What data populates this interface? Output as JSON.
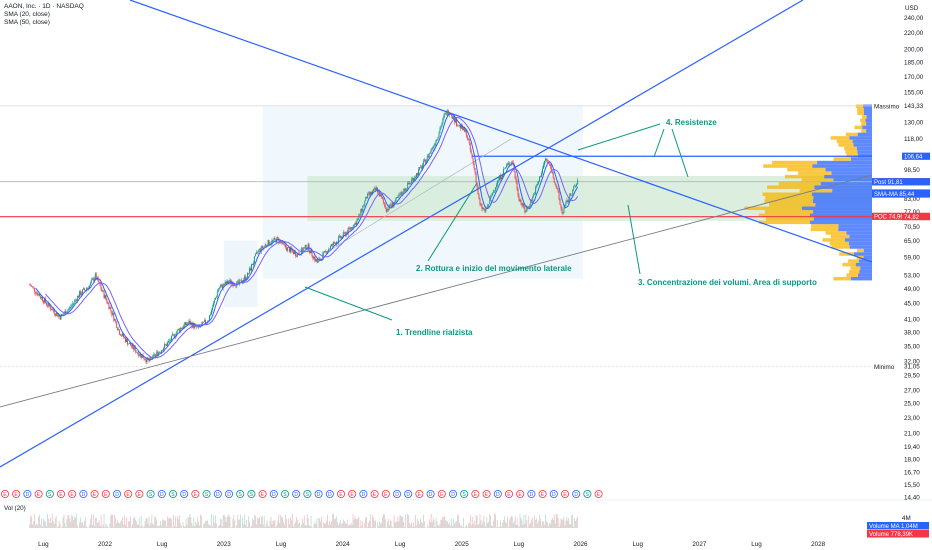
{
  "header": {
    "title": "AAON, Inc. · 1D · NASDAQ",
    "indicator_1": "SMA (20, close)",
    "indicator_2": "SMA (50, close)",
    "volume_label": "Vol (20)",
    "currency": "USD"
  },
  "chart_data": {
    "type": "candlestick",
    "symbol": "AAON",
    "exchange": "NASDAQ",
    "interval": "1D",
    "y_scale": "log",
    "y_ticks": [
      240.0,
      220.0,
      200.0,
      185.0,
      170.0,
      155.0,
      143.33,
      130.0,
      118.0,
      106.64,
      98.5,
      91.5,
      83.0,
      77.0,
      74.82,
      70.5,
      65.0,
      59.0,
      53.0,
      49.0,
      45.0,
      41.0,
      38.0,
      35.0,
      32.0,
      31.05,
      29.5,
      27.0,
      25.0,
      23.0,
      21.0,
      19.4,
      18.0,
      16.7,
      15.5,
      14.4
    ],
    "y_tick_labels": [
      "240,00",
      "220,00",
      "200,00",
      "185,00",
      "170,00",
      "155,00",
      "143,33",
      "130,00",
      "118,00",
      "106,64",
      "98,50",
      "91,50",
      "83,00",
      "77,00",
      "74,82",
      "70,50",
      "65,00",
      "59,00",
      "53,00",
      "49,00",
      "45,00",
      "41,00",
      "38,00",
      "35,00",
      "32,00",
      "31,05",
      "29,50",
      "27,00",
      "25,00",
      "23,00",
      "21,00",
      "19,40",
      "18,00",
      "16,70",
      "15,50",
      "14,40"
    ],
    "x_tick_labels": [
      "Lug",
      "2022",
      "Lug",
      "2023",
      "Lug",
      "2024",
      "Lug",
      "2025",
      "Lug",
      "2026",
      "Lug",
      "2027",
      "Lug",
      "2028"
    ],
    "price_series": [
      [
        "2021-05-15",
        50.2
      ],
      [
        "2021-06-15",
        47.0
      ],
      [
        "2021-07-15",
        44.0
      ],
      [
        "2021-08-15",
        41.5
      ],
      [
        "2021-09-15",
        43.8
      ],
      [
        "2021-10-15",
        47.5
      ],
      [
        "2021-11-15",
        50.0
      ],
      [
        "2021-12-01",
        53.0
      ],
      [
        "2021-12-20",
        49.0
      ],
      [
        "2022-01-15",
        44.0
      ],
      [
        "2022-02-15",
        38.0
      ],
      [
        "2022-03-15",
        35.5
      ],
      [
        "2022-04-15",
        33.5
      ],
      [
        "2022-05-15",
        32.0
      ],
      [
        "2022-06-15",
        33.8
      ],
      [
        "2022-07-15",
        35.8
      ],
      [
        "2022-08-15",
        38.6
      ],
      [
        "2022-09-15",
        40.2
      ],
      [
        "2022-10-15",
        38.8
      ],
      [
        "2022-11-15",
        41.0
      ],
      [
        "2022-12-15",
        49.0
      ],
      [
        "2023-01-15",
        51.0
      ],
      [
        "2023-02-15",
        50.4
      ],
      [
        "2023-03-15",
        53.0
      ],
      [
        "2023-04-15",
        61.0
      ],
      [
        "2023-05-15",
        64.0
      ],
      [
        "2023-06-15",
        65.5
      ],
      [
        "2023-07-15",
        62.0
      ],
      [
        "2023-08-15",
        60.0
      ],
      [
        "2023-09-15",
        63.0
      ],
      [
        "2023-10-15",
        57.0
      ],
      [
        "2023-11-15",
        61.5
      ],
      [
        "2023-12-15",
        65.0
      ],
      [
        "2024-01-15",
        68.5
      ],
      [
        "2024-02-15",
        73.0
      ],
      [
        "2024-03-15",
        84.0
      ],
      [
        "2024-04-15",
        88.0
      ],
      [
        "2024-05-15",
        78.0
      ],
      [
        "2024-06-15",
        82.5
      ],
      [
        "2024-07-15",
        89.0
      ],
      [
        "2024-08-15",
        96.0
      ],
      [
        "2024-09-15",
        105.0
      ],
      [
        "2024-10-15",
        118.0
      ],
      [
        "2024-11-10",
        136.0
      ],
      [
        "2024-11-25",
        139.0
      ],
      [
        "2024-12-15",
        130.0
      ],
      [
        "2025-01-15",
        122.0
      ],
      [
        "2025-02-10",
        98.0
      ],
      [
        "2025-02-25",
        80.0
      ],
      [
        "2025-03-15",
        77.0
      ],
      [
        "2025-04-15",
        90.0
      ],
      [
        "2025-05-15",
        100.0
      ],
      [
        "2025-06-05",
        104.0
      ],
      [
        "2025-06-25",
        84.0
      ],
      [
        "2025-07-15",
        77.0
      ],
      [
        "2025-08-05",
        83.0
      ],
      [
        "2025-08-25",
        92.0
      ],
      [
        "2025-09-15",
        105.0
      ],
      [
        "2025-10-01",
        100.0
      ],
      [
        "2025-10-20",
        88.0
      ],
      [
        "2025-11-05",
        76.5
      ],
      [
        "2025-11-25",
        83.0
      ],
      [
        "2025-12-10",
        88.0
      ],
      [
        "2025-12-25",
        91.8
      ]
    ],
    "sma20_label": "SMA-MA 85,96",
    "sma50_label": "SMA-MA 85,44",
    "price_scale_tags": [
      {
        "label": "Massimo",
        "value": "143,33",
        "price": 143.33,
        "style": "plain"
      },
      {
        "label": "",
        "value": "106,64",
        "price": 106.64,
        "style": "blue"
      },
      {
        "label": "AAON",
        "value": "91,86",
        "price": 91.86,
        "style": "red"
      },
      {
        "label": "Post",
        "value": "91,81",
        "price": 91.81,
        "style": "blue"
      },
      {
        "label": "SMA-MA",
        "value": "85,96",
        "price": 85.96,
        "style": "blue"
      },
      {
        "label": "SMA-MA",
        "value": "85,44",
        "price": 85.44,
        "style": "blue"
      },
      {
        "label": "",
        "value": "77,00",
        "price": 77.0,
        "style": "plain"
      },
      {
        "label": "POC",
        "value": "74,96",
        "price": 74.96,
        "style": "red"
      },
      {
        "label": "",
        "value": "74,82",
        "price": 74.82,
        "style": "red"
      },
      {
        "label": "Minimo",
        "value": "31,05",
        "price": 31.05,
        "style": "plain"
      }
    ],
    "lines": {
      "resistance": 106.64,
      "poc": 74.82,
      "all_time_high": 143.33,
      "gray_level": 91.86
    },
    "annotations": [
      "1. Trendline rialzista",
      "2. Rottura e inizio del movimento laterale",
      "3. Concentrazione dei volumi. Area di supporto",
      "4. Resistenze"
    ],
    "volume_tags": [
      {
        "label": "Volume MA",
        "value": "1,04M"
      },
      {
        "label": "Volume",
        "value": "778,39K"
      }
    ],
    "volume_ticks": [
      "4M"
    ],
    "event_markers": [
      "E",
      "E",
      "D",
      "E",
      "S",
      "E",
      "E",
      "D",
      "E",
      "E",
      "D",
      "E",
      "E",
      "S",
      "D",
      "S",
      "D",
      "E",
      "S",
      "D",
      "D",
      "S",
      "S",
      "E",
      "D",
      "S",
      "D",
      "S",
      "D",
      "D",
      "E",
      "E",
      "D",
      "E",
      "E",
      "D",
      "D",
      "E",
      "D",
      "E",
      "D",
      "S",
      "E",
      "E",
      "D",
      "E",
      "E",
      "D",
      "E",
      "D",
      "E",
      "D",
      "S",
      "E"
    ]
  }
}
